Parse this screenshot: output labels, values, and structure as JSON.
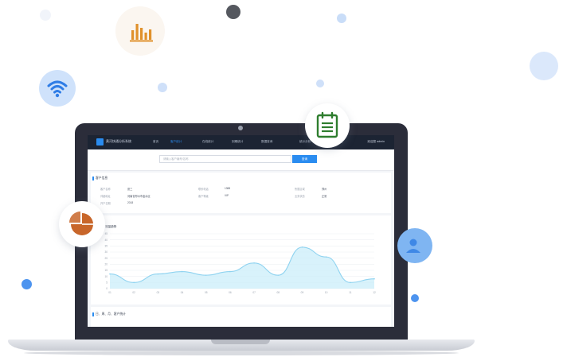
{
  "colors": {
    "accent": "#2a8cf0",
    "nav_bg": "#1c2433",
    "chart_line": "#8fd3f0",
    "chart_fill": "#cbedf9",
    "pie_orange": "#c8662a",
    "chart_orange": "#e0912c",
    "calendar_green": "#2e7d2e"
  },
  "icons": {
    "wifi": "wifi-icon",
    "bar_chart": "bar-chart-icon",
    "calendar": "calendar-icon",
    "pie_chart": "pie-chart-icon",
    "user": "user-icon"
  },
  "app": {
    "brand": "黄河快通分析系统",
    "nav": [
      "首页",
      "客户统计",
      "在线统计",
      "到期统计",
      "数据查询",
      "统计分析",
      "系统设置"
    ],
    "active_nav": 1,
    "user": "欢迎您 admin",
    "search": {
      "placeholder": "请输入客户编号/名称",
      "button": "查询"
    },
    "info": {
      "title": "客户信息",
      "fields": [
        {
          "label": "客户名称",
          "value": "张三"
        },
        {
          "label": "联系电话",
          "value": "1388"
        },
        {
          "label": "所属区域",
          "value": "郑州"
        },
        {
          "label": "详细地址",
          "value": "河南省郑州市金水区"
        },
        {
          "label": "客户等级",
          "value": "VIP"
        },
        {
          "label": "业务状态",
          "value": "正常"
        },
        {
          "label": "开户日期",
          "value": "2018"
        }
      ]
    },
    "footer_section": "日、周、月、客户统计"
  },
  "chart_data": {
    "type": "area",
    "title": "流量趋势",
    "x": [
      "01",
      "02",
      "03",
      "04",
      "05",
      "06",
      "07",
      "08",
      "09",
      "10",
      "11",
      "12"
    ],
    "values": [
      12,
      5,
      12,
      14,
      11,
      14,
      21,
      11,
      34,
      26,
      5,
      8
    ],
    "ylim": [
      0,
      45
    ],
    "yticks": [
      0,
      5,
      10,
      15,
      20,
      25,
      30,
      35,
      40,
      45
    ],
    "grid": true
  }
}
